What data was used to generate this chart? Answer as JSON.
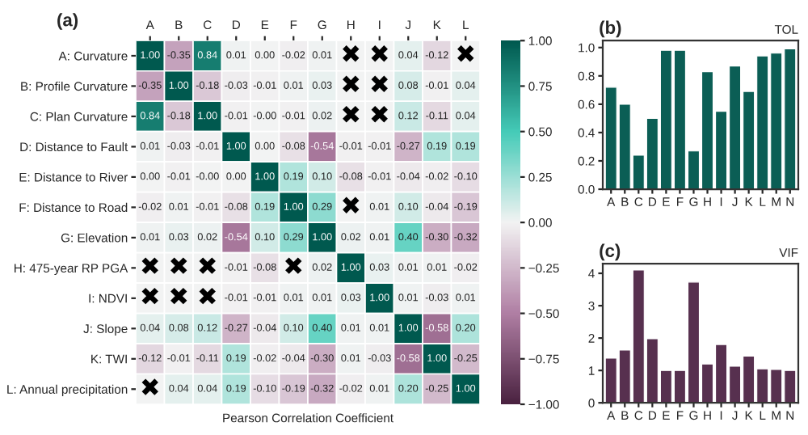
{
  "chart_data": [
    {
      "type": "heatmap",
      "title": "(a)",
      "xlabel": "Pearson Correlation Coefficient",
      "categories": [
        "A",
        "B",
        "C",
        "D",
        "E",
        "F",
        "G",
        "H",
        "I",
        "J",
        "K",
        "L"
      ],
      "y_categories": [
        "A: Curvature",
        "B: Profile Curvature",
        "C: Plan Curvature",
        "D: Distance to Fault",
        "E: Distance to River",
        "F: Distance to Road",
        "G: Elevation",
        "H: 475-year RP PGA",
        "I: NDVI",
        "J: Slope",
        "K: TWI",
        "L: Annual precipitation"
      ],
      "cells": [
        [
          1.0,
          -0.35,
          0.84,
          0.01,
          0.0,
          -0.02,
          0.01,
          0.0,
          0.0,
          0.04,
          -0.12,
          0.0
        ],
        [
          -0.35,
          1.0,
          -0.18,
          -0.03,
          -0.01,
          0.01,
          0.03,
          0.0,
          0.0,
          0.08,
          -0.01,
          0.04
        ],
        [
          0.84,
          -0.18,
          1.0,
          -0.01,
          -0.0,
          -0.01,
          0.02,
          0.0,
          0.0,
          0.12,
          -0.11,
          0.04
        ],
        [
          0.01,
          -0.03,
          -0.01,
          1.0,
          0.0,
          -0.08,
          -0.54,
          -0.01,
          -0.01,
          -0.27,
          0.19,
          0.19
        ],
        [
          0.0,
          -0.01,
          -0.0,
          0.0,
          1.0,
          0.19,
          0.1,
          -0.08,
          -0.01,
          -0.04,
          -0.02,
          -0.1
        ],
        [
          -0.02,
          0.01,
          -0.01,
          -0.08,
          0.19,
          1.0,
          0.29,
          0.0,
          0.01,
          0.1,
          -0.04,
          -0.19
        ],
        [
          0.01,
          0.03,
          0.02,
          -0.54,
          0.1,
          0.29,
          1.0,
          0.02,
          0.01,
          0.4,
          -0.3,
          -0.32
        ],
        [
          0.0,
          0.0,
          0.0,
          -0.01,
          -0.08,
          0.0,
          0.02,
          1.0,
          0.03,
          0.01,
          0.01,
          -0.02
        ],
        [
          0.0,
          0.0,
          0.0,
          -0.01,
          -0.01,
          0.01,
          0.01,
          0.03,
          1.0,
          0.01,
          -0.03,
          0.01
        ],
        [
          0.04,
          0.08,
          0.12,
          -0.27,
          -0.04,
          0.1,
          0.4,
          0.01,
          0.01,
          1.0,
          -0.58,
          0.2
        ],
        [
          -0.12,
          -0.01,
          -0.11,
          0.19,
          -0.02,
          -0.04,
          -0.3,
          0.01,
          -0.03,
          -0.58,
          1.0,
          -0.25
        ],
        [
          0.0,
          0.04,
          0.04,
          0.19,
          -0.1,
          -0.19,
          -0.32,
          -0.02,
          0.01,
          0.2,
          -0.25,
          1.0
        ]
      ],
      "cell_labels": [
        [
          "1.00",
          "-0.35",
          "0.84",
          "0.01",
          "0.00",
          "-0.02",
          "0.01",
          "✖",
          "✖",
          "0.04",
          "-0.12",
          "✖"
        ],
        [
          "-0.35",
          "1.00",
          "-0.18",
          "-0.03",
          "-0.01",
          "0.01",
          "0.03",
          "✖",
          "✖",
          "0.08",
          "-0.01",
          "0.04"
        ],
        [
          "0.84",
          "-0.18",
          "1.00",
          "-0.01",
          "-0.00",
          "-0.01",
          "0.02",
          "✖",
          "✖",
          "0.12",
          "-0.11",
          "0.04"
        ],
        [
          "0.01",
          "-0.03",
          "-0.01",
          "1.00",
          "0.00",
          "-0.08",
          "-0.54",
          "-0.01",
          "-0.01",
          "-0.27",
          "0.19",
          "0.19"
        ],
        [
          "0.00",
          "-0.01",
          "-0.00",
          "0.00",
          "1.00",
          "0.19",
          "0.10",
          "-0.08",
          "-0.01",
          "-0.04",
          "-0.02",
          "-0.10"
        ],
        [
          "-0.02",
          "0.01",
          "-0.01",
          "-0.08",
          "0.19",
          "1.00",
          "0.29",
          "✖",
          "0.01",
          "0.10",
          "-0.04",
          "-0.19"
        ],
        [
          "0.01",
          "0.03",
          "0.02",
          "-0.54",
          "0.10",
          "0.29",
          "1.00",
          "0.02",
          "0.01",
          "0.40",
          "-0.30",
          "-0.32"
        ],
        [
          "✖",
          "✖",
          "✖",
          "-0.01",
          "-0.08",
          "✖",
          "0.02",
          "1.00",
          "0.03",
          "0.01",
          "0.01",
          "-0.02"
        ],
        [
          "✖",
          "✖",
          "✖",
          "-0.01",
          "-0.01",
          "0.01",
          "0.01",
          "0.03",
          "1.00",
          "0.01",
          "-0.03",
          "0.01"
        ],
        [
          "0.04",
          "0.08",
          "0.12",
          "-0.27",
          "-0.04",
          "0.10",
          "0.40",
          "0.01",
          "0.01",
          "1.00",
          "-0.58",
          "0.20"
        ],
        [
          "-0.12",
          "-0.01",
          "-0.11",
          "0.19",
          "-0.02",
          "-0.04",
          "-0.30",
          "0.01",
          "-0.03",
          "-0.58",
          "1.00",
          "-0.25"
        ],
        [
          "✖",
          "0.04",
          "0.04",
          "0.19",
          "-0.10",
          "-0.19",
          "-0.32",
          "-0.02",
          "0.01",
          "0.20",
          "-0.25",
          "1.00"
        ]
      ],
      "clim": [
        -1,
        1
      ],
      "cticks": [
        {
          "value": -1,
          "label": "−1.00"
        },
        {
          "value": -0.75,
          "label": "−0.75"
        },
        {
          "value": -0.5,
          "label": "−0.50"
        },
        {
          "value": -0.25,
          "label": "−0.25"
        },
        {
          "value": 0,
          "label": "0.00"
        },
        {
          "value": 0.25,
          "label": "0.25"
        },
        {
          "value": 0.5,
          "label": "0.50"
        },
        {
          "value": 0.75,
          "label": "0.75"
        },
        {
          "value": 1,
          "label": "1.00"
        }
      ]
    },
    {
      "type": "bar",
      "title": "(b)",
      "subtitle": "TOL",
      "categories": [
        "A",
        "B",
        "C",
        "D",
        "E",
        "F",
        "G",
        "H",
        "I",
        "J",
        "K",
        "L",
        "M",
        "N"
      ],
      "values": [
        0.72,
        0.6,
        0.24,
        0.5,
        0.98,
        0.98,
        0.27,
        0.83,
        0.55,
        0.87,
        0.69,
        0.94,
        0.96,
        0.99
      ],
      "color": "#0b5e55",
      "ylim": [
        0,
        1.05
      ],
      "yticks": [
        {
          "value": 0,
          "label": "0.0"
        },
        {
          "value": 0.2,
          "label": "0.2"
        },
        {
          "value": 0.4,
          "label": "0.4"
        },
        {
          "value": 0.6,
          "label": "0.6"
        },
        {
          "value": 0.8,
          "label": "0.8"
        },
        {
          "value": 1,
          "label": "1.0"
        }
      ]
    },
    {
      "type": "bar",
      "title": "(c)",
      "subtitle": "VIF",
      "categories": [
        "A",
        "B",
        "C",
        "D",
        "E",
        "F",
        "G",
        "H",
        "I",
        "J",
        "K",
        "L",
        "M",
        "N"
      ],
      "values": [
        1.38,
        1.63,
        4.1,
        1.98,
        1.0,
        1.0,
        3.73,
        1.2,
        1.8,
        1.13,
        1.44,
        1.05,
        1.03,
        1.0
      ],
      "color": "#57304f",
      "ylim": [
        0,
        4.3
      ],
      "yticks": [
        0,
        1,
        2,
        3,
        4
      ]
    }
  ]
}
